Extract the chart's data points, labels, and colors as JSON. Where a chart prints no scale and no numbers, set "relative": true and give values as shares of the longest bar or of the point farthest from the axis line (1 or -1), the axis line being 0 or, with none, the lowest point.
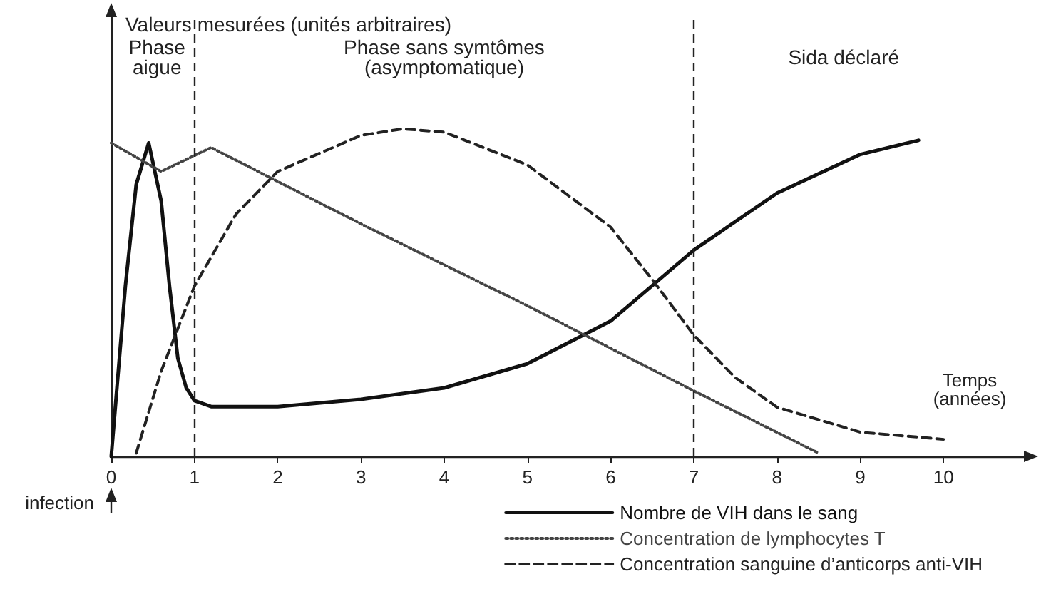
{
  "chart_data": {
    "type": "line",
    "relative": true,
    "xlabel": "Temps\n(années)",
    "ylabel": "Valeurs mesurées (unités arbitraires)",
    "xlim": [
      0,
      11
    ],
    "xticks": [
      0,
      1,
      2,
      3,
      4,
      5,
      6,
      7,
      8,
      9,
      10
    ],
    "series": [
      {
        "name": "Nombre de VIH dans le sang",
        "color": "#111111",
        "line_style": "solid",
        "x": [
          0,
          0.17,
          0.3,
          0.45,
          0.6,
          0.7,
          0.8,
          0.9,
          1,
          1.2,
          2,
          3,
          4,
          5,
          6,
          7,
          8,
          9,
          9.7
        ],
        "values": [
          0,
          0.52,
          0.83,
          0.957,
          0.78,
          0.52,
          0.3,
          0.21,
          0.17,
          0.152,
          0.152,
          0.174,
          0.209,
          0.283,
          0.413,
          0.63,
          0.804,
          0.922,
          0.965
        ]
      },
      {
        "name": "Concentration de lymphocytes T",
        "color": "#444444",
        "line_style": "dotted",
        "x": [
          0,
          0.6,
          1.2,
          3,
          5,
          7,
          8.5
        ],
        "values": [
          0.957,
          0.87,
          0.943,
          0.71,
          0.46,
          0.2,
          0.01
        ]
      },
      {
        "name": "Concentration sanguine d’anticorps anti-VIH",
        "color": "#222222",
        "line_style": "dashed",
        "x": [
          0.3,
          0.6,
          1,
          1.5,
          2,
          3,
          3.5,
          4,
          5,
          6,
          6.5,
          7,
          7.5,
          8,
          9,
          10
        ],
        "values": [
          0.01,
          0.26,
          0.52,
          0.74,
          0.87,
          0.98,
          1,
          0.99,
          0.89,
          0.7,
          0.54,
          0.37,
          0.24,
          0.15,
          0.074,
          0.052
        ]
      }
    ],
    "ref_lines": [
      {
        "axis": "x",
        "value": 1,
        "line_style": "dashed",
        "color": "#222222"
      },
      {
        "axis": "x",
        "value": 7,
        "line_style": "dashed",
        "color": "#222222"
      }
    ],
    "annotations": [
      "Phase\naigue",
      "Phase sans symtômes\n(asymptomatique)",
      "Sida déclaré",
      {
        "text": "infection",
        "x": 0,
        "y": 0
      }
    ],
    "marker": "none",
    "grid": false,
    "legend": "bottom right"
  }
}
